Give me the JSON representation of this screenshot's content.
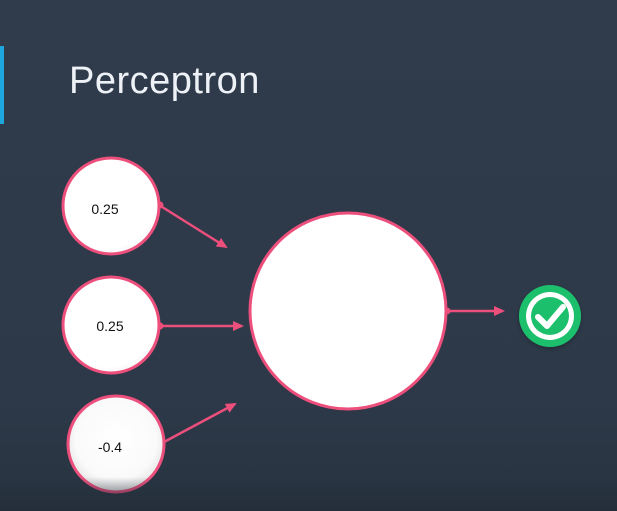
{
  "slide": {
    "title": "Perceptron"
  },
  "diagram": {
    "inputs": [
      {
        "label": "0.25"
      },
      {
        "label": "0.25"
      },
      {
        "label": "-0.4"
      }
    ],
    "output_icon": "check-circle-icon"
  },
  "colors": {
    "background": "#2f3b4b",
    "accent": "#1ea7df",
    "edge": "#ec4f7c",
    "node_fill": "#ffffff",
    "output_icon": "#1fbf6c"
  }
}
